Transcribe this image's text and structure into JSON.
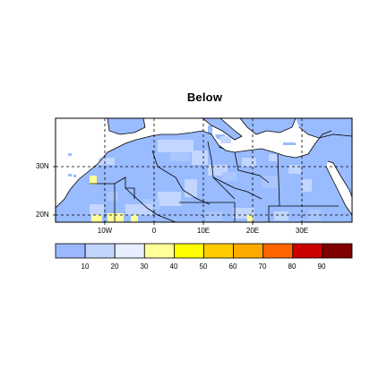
{
  "title": "Below",
  "map": {
    "lat_labels": [
      "30N",
      "20N"
    ],
    "lon_labels": [
      "10W",
      "0",
      "10E",
      "20E",
      "30E"
    ],
    "grid_lines": true,
    "colors": {
      "land_base": "#99bbff",
      "light_blue": "#c2d6ff",
      "mid_blue": "#aac6ff",
      "yellow": "#ffff99",
      "ocean": "#ffffff",
      "border": "#000000"
    }
  },
  "colorbar": {
    "colors": [
      "#9ab7ff",
      "#c2d5ff",
      "#e6eeff",
      "#ffff99",
      "#ffff00",
      "#ffcc00",
      "#ffaa00",
      "#ff6600",
      "#cc0000",
      "#800000"
    ],
    "labels": [
      "10",
      "20",
      "30",
      "40",
      "50",
      "60",
      "70",
      "80",
      "90"
    ]
  }
}
